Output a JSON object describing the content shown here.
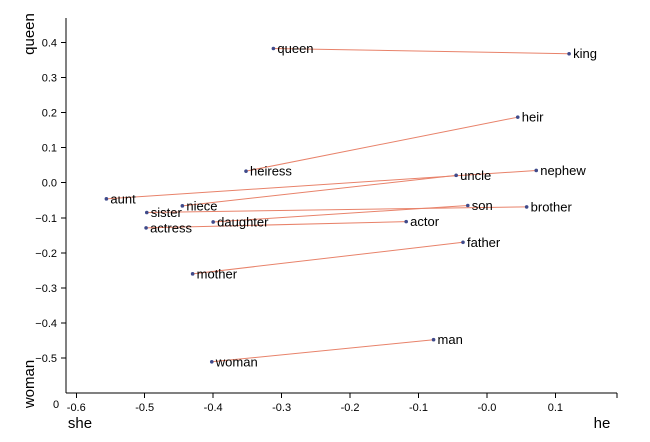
{
  "chart_data": {
    "type": "scatter",
    "x_axis": {
      "left_label": "she",
      "right_label": "he",
      "ticks": [
        -0.6,
        -0.5,
        -0.4,
        -0.3,
        -0.2,
        -0.1,
        0.0,
        0.1
      ],
      "tick_labels": [
        "-0.6",
        "-0.5",
        "-0.4",
        "-0.3",
        "-0.2",
        "-0.1",
        "-0.0",
        "0.1"
      ],
      "origin_label": "0",
      "range": [
        -0.615,
        0.19
      ]
    },
    "y_axis": {
      "top_label": "queen",
      "bottom_label": "woman",
      "ticks": [
        0.4,
        0.3,
        0.2,
        0.1,
        0.0,
        -0.1,
        -0.2,
        -0.3,
        -0.4,
        -0.5
      ],
      "tick_labels": [
        "0.4",
        "0.3",
        "0.2",
        "0.1",
        "0.0",
        "−0.1",
        "−0.2",
        "−0.3",
        "−0.4",
        "−0.5"
      ],
      "range": [
        -0.6,
        0.47
      ]
    },
    "points": [
      {
        "label": "queen",
        "x": -0.312,
        "y": 0.383
      },
      {
        "label": "king",
        "x": 0.12,
        "y": 0.368
      },
      {
        "label": "heir",
        "x": 0.045,
        "y": 0.187
      },
      {
        "label": "heiress",
        "x": -0.352,
        "y": 0.033
      },
      {
        "label": "uncle",
        "x": -0.045,
        "y": 0.021
      },
      {
        "label": "nephew",
        "x": 0.072,
        "y": 0.035
      },
      {
        "label": "aunt",
        "x": -0.556,
        "y": -0.046
      },
      {
        "label": "niece",
        "x": -0.445,
        "y": -0.066
      },
      {
        "label": "sister",
        "x": -0.497,
        "y": -0.085
      },
      {
        "label": "son",
        "x": -0.028,
        "y": -0.065
      },
      {
        "label": "brother",
        "x": 0.058,
        "y": -0.069
      },
      {
        "label": "daughter",
        "x": -0.4,
        "y": -0.112
      },
      {
        "label": "actor",
        "x": -0.118,
        "y": -0.111
      },
      {
        "label": "actress",
        "x": -0.498,
        "y": -0.129
      },
      {
        "label": "father",
        "x": -0.035,
        "y": -0.17
      },
      {
        "label": "mother",
        "x": -0.43,
        "y": -0.26
      },
      {
        "label": "man",
        "x": -0.078,
        "y": -0.448
      },
      {
        "label": "woman",
        "x": -0.402,
        "y": -0.511
      }
    ],
    "pairs": [
      [
        "queen",
        "king"
      ],
      [
        "heiress",
        "heir"
      ],
      [
        "aunt",
        "nephew"
      ],
      [
        "niece",
        "uncle"
      ],
      [
        "sister",
        "brother"
      ],
      [
        "daughter",
        "son"
      ],
      [
        "actress",
        "actor"
      ],
      [
        "mother",
        "father"
      ],
      [
        "woman",
        "man"
      ]
    ],
    "colors": {
      "point": "#3f4a8a",
      "pair_line": "#e8826a",
      "axis": "#000000"
    }
  }
}
